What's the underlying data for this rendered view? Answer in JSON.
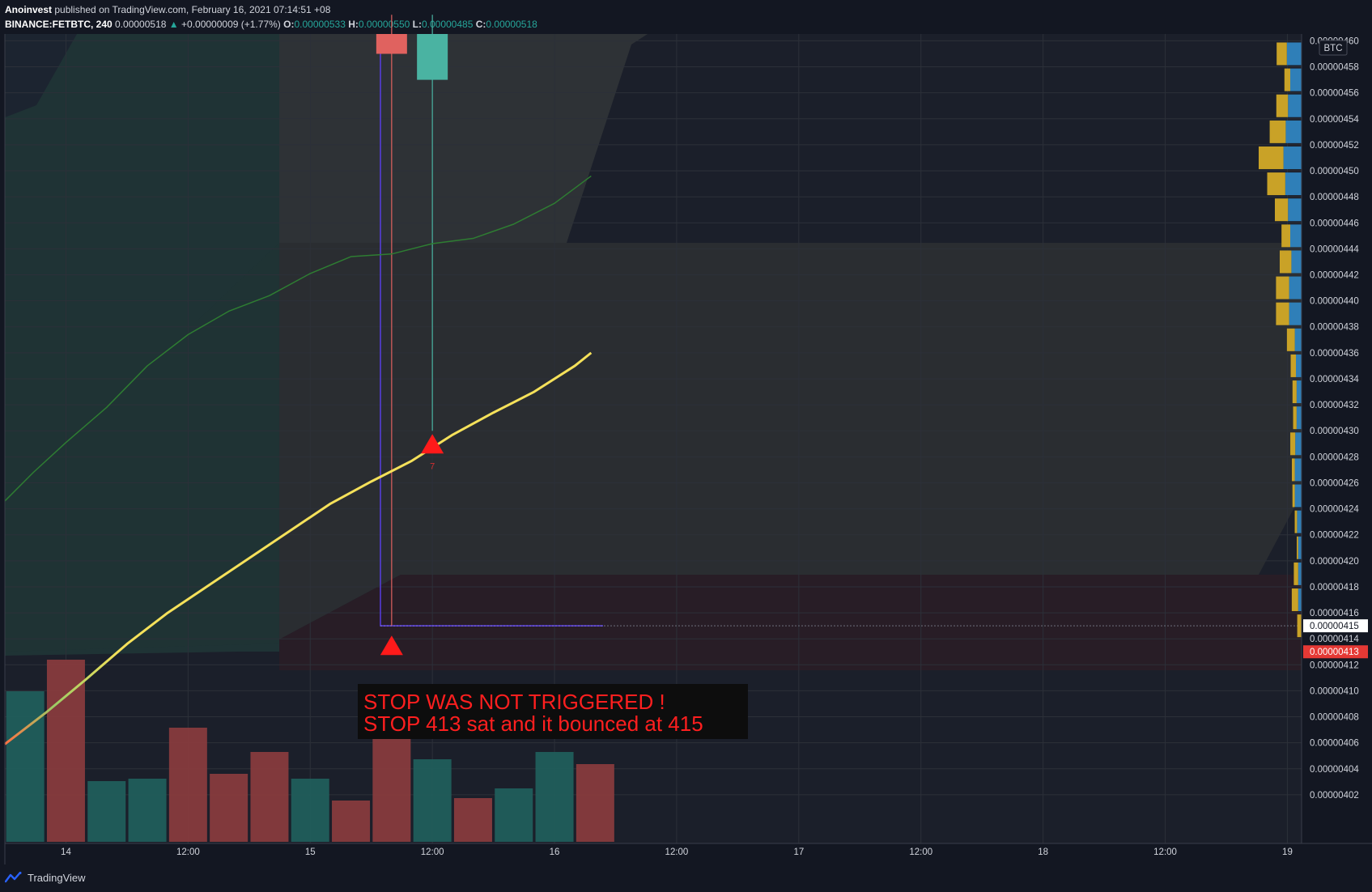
{
  "header": {
    "author": "Anoinvest",
    "published": "published on TradingView.com, February 16, 2021 07:14:51 +08",
    "symbol": "BINANCE:FETBTC, 240",
    "last": "0.00000518",
    "change": "+0.00000009 (+1.77%)",
    "o_label": "O:",
    "open": "0.00000533",
    "h_label": "H:",
    "high": "0.00000550",
    "l_label": "L:",
    "low": "0.00000485",
    "c_label": "C:",
    "close": "0.00000518"
  },
  "footer": {
    "brand": "TradingView"
  },
  "colors": {
    "background": "#131722",
    "up": "#26a69a",
    "down": "#ef5350",
    "ma_fast": "#f5e15a",
    "ma_slow": "#2e7d32",
    "stop_marker": "#ff1a1a",
    "vp_buy": "#c9a227",
    "vp_sell": "#2f7fb8"
  },
  "chart_data": {
    "type": "line",
    "currency": "BTC",
    "y_ticks": [
      "0.00000402",
      "0.00000404",
      "0.00000406",
      "0.00000408",
      "0.00000410",
      "0.00000412",
      "0.00000414",
      "0.00000416",
      "0.00000418",
      "0.00000420",
      "0.00000422",
      "0.00000424",
      "0.00000426",
      "0.00000428",
      "0.00000430",
      "0.00000432",
      "0.00000434",
      "0.00000436",
      "0.00000438",
      "0.00000440",
      "0.00000442",
      "0.00000444",
      "0.00000446",
      "0.00000448",
      "0.00000450",
      "0.00000452",
      "0.00000454",
      "0.00000456",
      "0.00000458",
      "0.00000460"
    ],
    "ylim": [
      4.005e-06,
      4.604e-06
    ],
    "x_ticks": [
      {
        "label": "14",
        "idx": 1.5
      },
      {
        "label": "12:00",
        "idx": 4.5
      },
      {
        "label": "15",
        "idx": 7.5
      },
      {
        "label": "12:00",
        "idx": 10.5
      },
      {
        "label": "16",
        "idx": 13.5
      },
      {
        "label": "12:00",
        "idx": 16.5
      },
      {
        "label": "17",
        "idx": 19.5
      },
      {
        "label": "12:00",
        "idx": 22.5
      },
      {
        "label": "18",
        "idx": 25.5
      },
      {
        "label": "12:00",
        "idx": 28.5
      },
      {
        "label": "19",
        "idx": 31.5
      }
    ],
    "current_price_label": "0.00000415",
    "stop_price_label": "0.00000413",
    "candles": [
      {
        "idx": 9.5,
        "open": 4.62e-06,
        "close": 4.59e-06,
        "high": 4.62e-06,
        "low": 4.15e-06,
        "dir": "down"
      },
      {
        "idx": 10.5,
        "open": 4.57e-06,
        "close": 4.62e-06,
        "high": 4.62e-06,
        "low": 4.3e-06,
        "dir": "up"
      }
    ],
    "series": [
      {
        "name": "",
        "color": "#f5e15a",
        "width": 3,
        "x": [
          0,
          1,
          2,
          3,
          4,
          5,
          6,
          7,
          8,
          9,
          10,
          11,
          12,
          13,
          14,
          14.4
        ],
        "y": [
          4.059e-06,
          4.083e-06,
          4.109e-06,
          4.136e-06,
          4.16e-06,
          4.181e-06,
          4.202e-06,
          4.223e-06,
          4.244e-06,
          4.261e-06,
          4.277e-06,
          4.297e-06,
          4.314e-06,
          4.33e-06,
          4.35e-06,
          4.36e-06
        ]
      },
      {
        "name": "",
        "color": "#2e7d32",
        "width": 1.5,
        "x": [
          0,
          0.7,
          1.5,
          2.5,
          3.5,
          4.5,
          5.5,
          6.5,
          7.5,
          8.5,
          9.5,
          10.5,
          11.5,
          12.5,
          13.5,
          14.4
        ],
        "y": [
          4.246e-06,
          4.268e-06,
          4.291e-06,
          4.318e-06,
          4.35e-06,
          4.374e-06,
          4.392e-06,
          4.404e-06,
          4.421e-06,
          4.434e-06,
          4.436e-06,
          4.444e-06,
          4.448e-06,
          4.459e-06,
          4.475e-06,
          4.496e-06
        ]
      }
    ],
    "volume": [
      {
        "idx": 0.5,
        "dir": "up",
        "v": 62
      },
      {
        "idx": 1.5,
        "dir": "down",
        "v": 75
      },
      {
        "idx": 2.5,
        "dir": "up",
        "v": 25
      },
      {
        "idx": 3.5,
        "dir": "up",
        "v": 26
      },
      {
        "idx": 4.5,
        "dir": "down",
        "v": 47
      },
      {
        "idx": 5.5,
        "dir": "down",
        "v": 28
      },
      {
        "idx": 6.5,
        "dir": "down",
        "v": 37
      },
      {
        "idx": 7.5,
        "dir": "up",
        "v": 26
      },
      {
        "idx": 8.5,
        "dir": "down",
        "v": 17
      },
      {
        "idx": 9.5,
        "dir": "down",
        "v": 45
      },
      {
        "idx": 10.5,
        "dir": "up",
        "v": 34
      },
      {
        "idx": 11.5,
        "dir": "down",
        "v": 18
      },
      {
        "idx": 12.5,
        "dir": "up",
        "v": 22
      },
      {
        "idx": 13.5,
        "dir": "up",
        "v": 37
      },
      {
        "idx": 14.5,
        "dir": "down",
        "v": 32
      }
    ],
    "volume_profile": [
      {
        "price": 4.59e-06,
        "buy": 0.35,
        "sell": 0.65
      },
      {
        "price": 4.57e-06,
        "buy": 0.2,
        "sell": 0.5
      },
      {
        "price": 4.55e-06,
        "buy": 0.4,
        "sell": 0.6
      },
      {
        "price": 4.53e-06,
        "buy": 0.55,
        "sell": 0.7
      },
      {
        "price": 4.51e-06,
        "buy": 0.85,
        "sell": 0.8
      },
      {
        "price": 4.49e-06,
        "buy": 0.62,
        "sell": 0.72
      },
      {
        "price": 4.47e-06,
        "buy": 0.45,
        "sell": 0.6
      },
      {
        "price": 4.45e-06,
        "buy": 0.3,
        "sell": 0.5
      },
      {
        "price": 4.43e-06,
        "buy": 0.4,
        "sell": 0.45
      },
      {
        "price": 4.41e-06,
        "buy": 0.45,
        "sell": 0.55
      },
      {
        "price": 4.39e-06,
        "buy": 0.45,
        "sell": 0.55
      },
      {
        "price": 4.37e-06,
        "buy": 0.27,
        "sell": 0.3
      },
      {
        "price": 4.35e-06,
        "buy": 0.18,
        "sell": 0.25
      },
      {
        "price": 4.33e-06,
        "buy": 0.14,
        "sell": 0.22
      },
      {
        "price": 4.31e-06,
        "buy": 0.12,
        "sell": 0.22
      },
      {
        "price": 4.29e-06,
        "buy": 0.17,
        "sell": 0.28
      },
      {
        "price": 4.27e-06,
        "buy": 0.1,
        "sell": 0.3
      },
      {
        "price": 4.25e-06,
        "buy": 0.08,
        "sell": 0.3
      },
      {
        "price": 4.23e-06,
        "buy": 0.08,
        "sell": 0.2
      },
      {
        "price": 4.21e-06,
        "buy": 0.05,
        "sell": 0.15
      },
      {
        "price": 4.19e-06,
        "buy": 0.15,
        "sell": 0.15
      },
      {
        "price": 4.17e-06,
        "buy": 0.22,
        "sell": 0.15
      },
      {
        "price": 4.15e-06,
        "buy": 0.15,
        "sell": 0.0
      }
    ],
    "markers": [
      {
        "idx": 10.5,
        "price": 4.29e-06,
        "type": "triangle-up",
        "label": "7"
      },
      {
        "idx": 9.5,
        "price": 4.135e-06,
        "type": "triangle-up",
        "label": ""
      }
    ],
    "annotation": {
      "line1": "STOP WAS NOT TRIGGERED !",
      "line2": "STOP 413 sat and it bounced at 415"
    }
  }
}
